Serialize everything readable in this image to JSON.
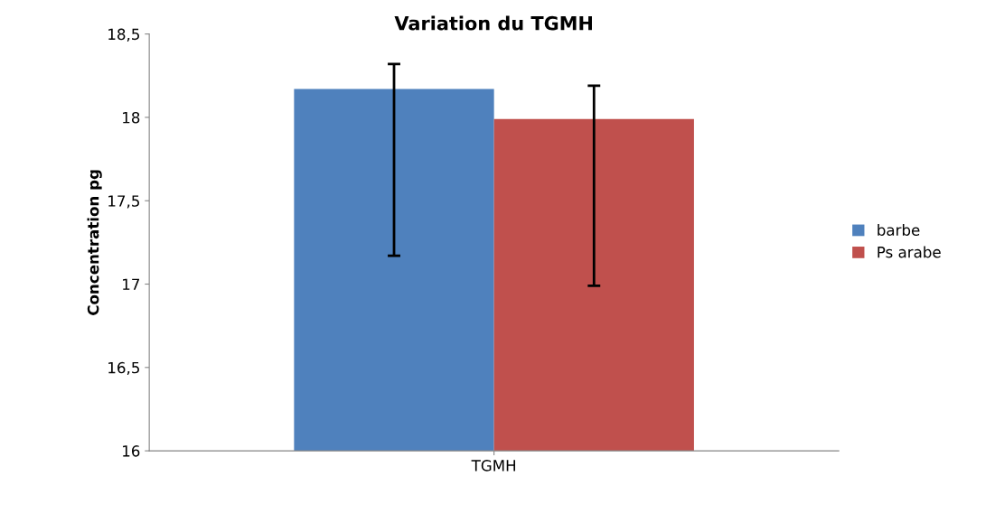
{
  "chart_data": {
    "type": "bar",
    "title": "Variation du TGMH",
    "ylabel": "Concentration pg",
    "categories": [
      "TGMH"
    ],
    "series": [
      {
        "name": "barbe",
        "color": "#4f81bd",
        "values": [
          18.17
        ],
        "errors": [
          [
            17.17,
            18.32
          ]
        ]
      },
      {
        "name": "Ps arabe",
        "color": "#c0504d",
        "values": [
          17.99
        ],
        "errors": [
          [
            16.99,
            18.19
          ]
        ]
      }
    ],
    "ylim": [
      16,
      18.5
    ],
    "yticks": [
      {
        "value": 16,
        "label": "16"
      },
      {
        "value": 16.5,
        "label": "16,5"
      },
      {
        "value": 17,
        "label": "17"
      },
      {
        "value": 17.5,
        "label": "17,5"
      },
      {
        "value": 18,
        "label": "18"
      },
      {
        "value": 18.5,
        "label": "18,5"
      }
    ],
    "grid": false,
    "legend": "right"
  }
}
